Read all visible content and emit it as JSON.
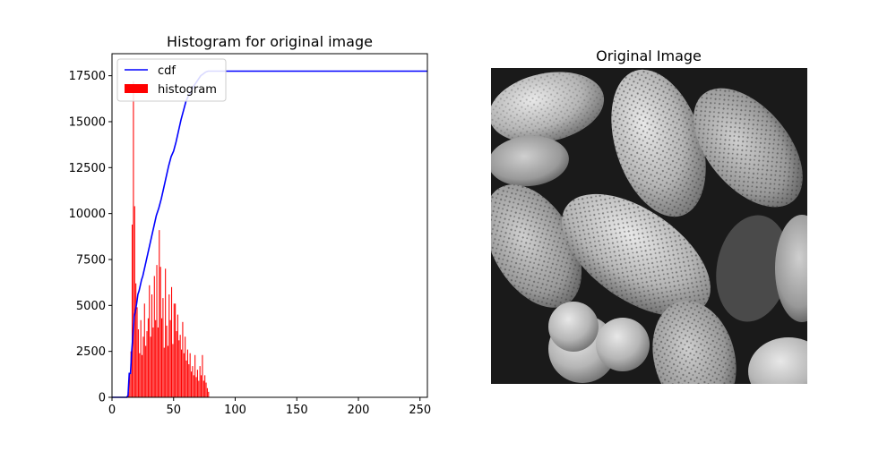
{
  "chart_data": [
    {
      "type": "bar",
      "title": "Histogram for original image",
      "xlabel": "",
      "ylabel": "",
      "xlim": [
        0,
        256
      ],
      "ylim": [
        0,
        18700
      ],
      "xticks": [
        0,
        50,
        100,
        150,
        200,
        250
      ],
      "yticks": [
        0,
        2500,
        5000,
        7500,
        10000,
        12500,
        15000,
        17500
      ],
      "grid": false,
      "legend": {
        "placement": "upper left",
        "entries": [
          {
            "label": "cdf",
            "color": "#0000ff",
            "kind": "line"
          },
          {
            "label": "histogram",
            "color": "#ff0000",
            "kind": "patch"
          }
        ]
      },
      "series": [
        {
          "name": "histogram",
          "kind": "bar",
          "color": "#ff0000",
          "x": [
            13,
            14,
            15,
            16,
            17,
            18,
            19,
            20,
            21,
            22,
            23,
            24,
            25,
            26,
            27,
            28,
            29,
            30,
            31,
            32,
            33,
            34,
            35,
            36,
            37,
            38,
            39,
            40,
            41,
            42,
            43,
            44,
            45,
            46,
            47,
            48,
            49,
            50,
            51,
            52,
            53,
            54,
            55,
            56,
            57,
            58,
            59,
            60,
            61,
            62,
            63,
            64,
            65,
            66,
            67,
            68,
            69,
            70,
            71,
            72,
            73,
            74,
            75,
            76,
            77,
            78
          ],
          "values": [
            300,
            1300,
            2500,
            9400,
            17200,
            10400,
            6200,
            4900,
            3700,
            2400,
            4200,
            2300,
            3300,
            5100,
            2800,
            3600,
            4300,
            6100,
            3300,
            5600,
            3800,
            6600,
            4200,
            7200,
            3800,
            9100,
            7100,
            4300,
            5400,
            2700,
            7000,
            3900,
            2800,
            5600,
            4200,
            6000,
            2900,
            5100,
            5100,
            3600,
            4500,
            3100,
            3400,
            2600,
            4100,
            2400,
            3300,
            2000,
            2600,
            1800,
            2400,
            1400,
            1700,
            1200,
            2300,
            1100,
            1500,
            900,
            1700,
            1200,
            2300,
            900,
            1200,
            800,
            500,
            300
          ]
        },
        {
          "name": "cdf",
          "kind": "line",
          "color": "#0000ff",
          "x": [
            0,
            12,
            13,
            14,
            15,
            16,
            17,
            18,
            19,
            20,
            21,
            22,
            23,
            24,
            25,
            26,
            27,
            28,
            29,
            30,
            32,
            34,
            36,
            38,
            40,
            42,
            44,
            46,
            48,
            50,
            52,
            54,
            56,
            58,
            60,
            62,
            64,
            66,
            68,
            70,
            72,
            74,
            76,
            78,
            80,
            256
          ],
          "values": [
            0,
            0,
            100,
            1300,
            1300,
            2500,
            3400,
            4400,
            4700,
            5100,
            5600,
            5800,
            6100,
            6400,
            6600,
            6900,
            7200,
            7500,
            7800,
            8100,
            8700,
            9300,
            9900,
            10300,
            10800,
            11400,
            12000,
            12600,
            13100,
            13400,
            13900,
            14500,
            15100,
            15600,
            16100,
            16400,
            16600,
            16900,
            17100,
            17300,
            17500,
            17600,
            17700,
            17750,
            17750,
            17750
          ]
        }
      ]
    },
    {
      "type": "image",
      "title": "Original Image"
    }
  ]
}
